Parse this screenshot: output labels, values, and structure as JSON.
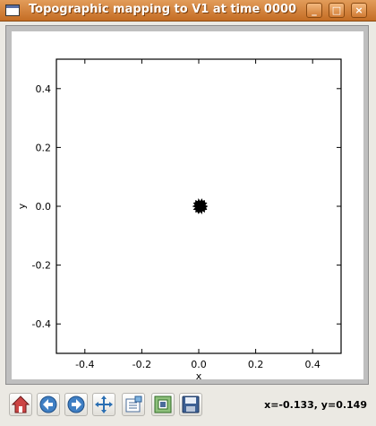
{
  "window": {
    "title": "Topographic mapping to V1 at time 0000",
    "minimize_label": "_",
    "maximize_label": "□",
    "close_label": "×"
  },
  "chart_data": {
    "type": "scatter",
    "title": "",
    "xlabel": "x",
    "ylabel": "y",
    "xlim": [
      -0.5,
      0.5
    ],
    "ylim": [
      -0.5,
      0.5
    ],
    "x_ticks": [
      -0.4,
      -0.2,
      0.0,
      0.2,
      0.4
    ],
    "y_ticks": [
      -0.4,
      -0.2,
      0.0,
      0.2,
      0.4
    ],
    "x_tick_labels": [
      "-0.4",
      "-0.2",
      "0.0",
      "0.2",
      "0.4"
    ],
    "y_tick_labels": [
      "-0.4",
      "-0.2",
      "0.0",
      "0.2",
      "0.4"
    ],
    "grid": false,
    "points_color": "#000000",
    "cluster": {
      "center": [
        0.005,
        0.0
      ],
      "radius": 0.025
    }
  },
  "toolbar": {
    "items": [
      {
        "name": "home-button",
        "icon": "home-icon"
      },
      {
        "name": "back-button",
        "icon": "arrow-left-icon"
      },
      {
        "name": "forward-button",
        "icon": "arrow-right-icon"
      },
      {
        "name": "pan-button",
        "icon": "move-icon"
      },
      {
        "name": "configure-subplots-button",
        "icon": "subplots-icon"
      },
      {
        "name": "zoom-to-rect-button",
        "icon": "zoom-rect-icon"
      },
      {
        "name": "save-button",
        "icon": "floppy-disk-icon"
      }
    ],
    "coordinates": "x=-0.133, y=0.149"
  }
}
